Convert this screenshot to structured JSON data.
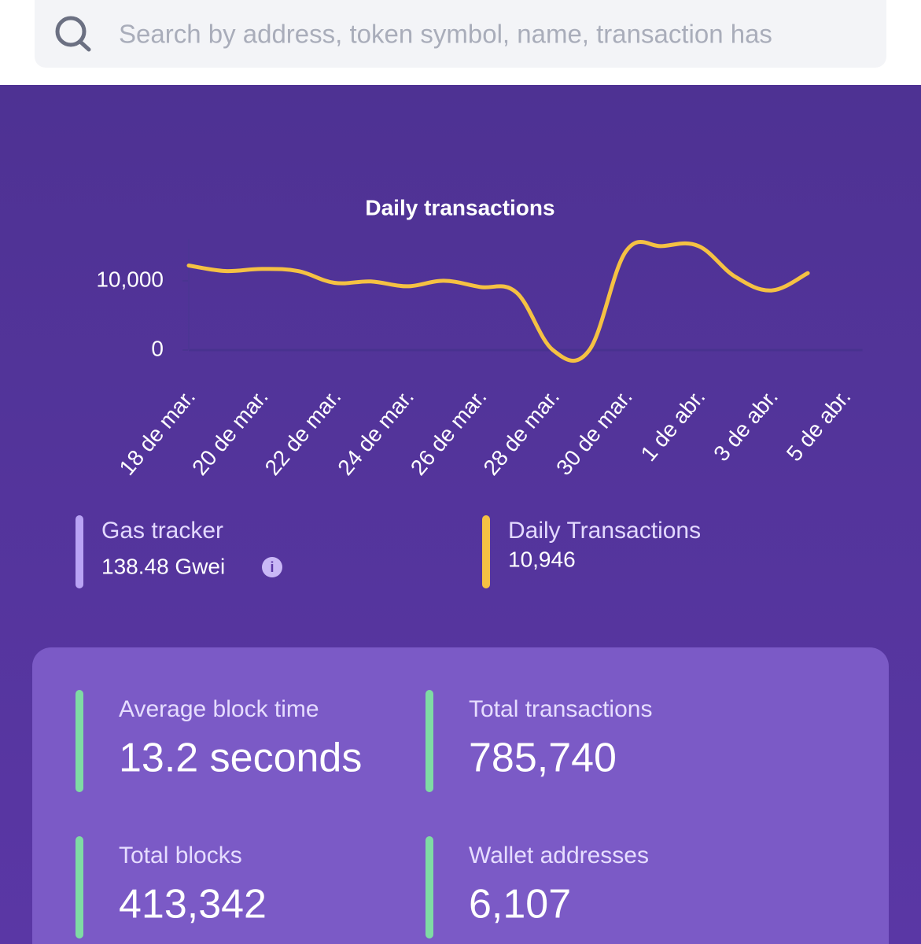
{
  "search": {
    "placeholder": "Search by address, token symbol, name, transaction has"
  },
  "chart_data": {
    "type": "line",
    "title": "Daily transactions",
    "categories": [
      "18 de mar.",
      null,
      "20 de mar.",
      null,
      "22 de mar.",
      null,
      "24 de mar.",
      null,
      "26 de mar.",
      null,
      "28 de mar.",
      null,
      "30 de mar.",
      null,
      "1 de abr.",
      null,
      "3 de abr.",
      null,
      "5 de abr."
    ],
    "values": [
      12200,
      11400,
      11700,
      11400,
      9700,
      9900,
      9200,
      10000,
      9100,
      8300,
      0,
      0,
      14200,
      15000,
      15000,
      10600,
      8600,
      11100,
      null
    ],
    "color": "#f5c143",
    "ylim": [
      0,
      16000
    ],
    "yticks": [
      0,
      {
        "value": 10000,
        "label": "10,000"
      }
    ]
  },
  "summary": [
    {
      "label": "Gas tracker",
      "value": "138.48 Gwei"
    },
    {
      "label": "Daily Transactions",
      "value": "10,946"
    }
  ],
  "stats": [
    {
      "label": "Average block time",
      "value": "13.2 seconds"
    },
    {
      "label": "Total transactions",
      "value": "785,740"
    },
    {
      "label": "Total blocks",
      "value": "413,342"
    },
    {
      "label": "Wallet addresses",
      "value": "6,107"
    }
  ]
}
